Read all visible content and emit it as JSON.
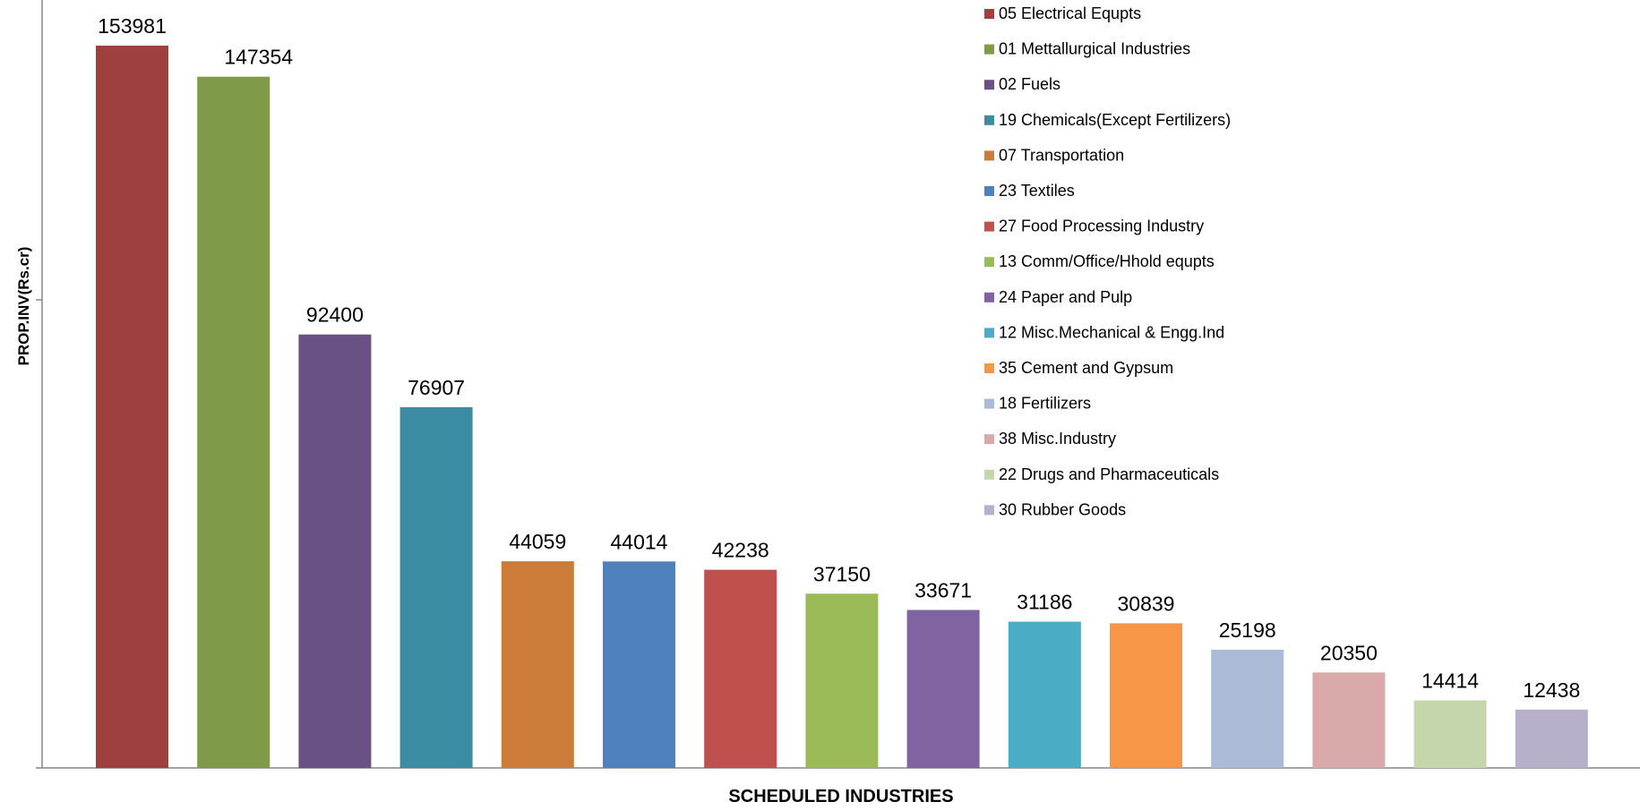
{
  "chart_data": {
    "type": "bar",
    "title": "",
    "xlabel": "SCHEDULED INDUSTRIES",
    "ylabel": "PROP.INV(Rs.cr)",
    "ylim": [
      0,
      160000
    ],
    "grid": false,
    "legend_position": "top-right",
    "categories": [
      "05 Electrical Equpts",
      "01 Mettallurgical Industries",
      "02 Fuels",
      "19 Chemicals(Except Fertilizers)",
      "07 Transportation",
      "23 Textiles",
      "27 Food Processing Industry",
      "13 Comm/Office/Hhold equpts",
      "24 Paper and Pulp",
      "12 Misc.Mechanical & Engg.Ind",
      "35 Cement and Gypsum",
      "18 Fertilizers",
      "38 Misc.Industry",
      "22 Drugs and Pharmaceuticals",
      "30 Rubber Goods"
    ],
    "values": [
      153981,
      147354,
      92400,
      76907,
      44059,
      44014,
      42238,
      37150,
      33671,
      31186,
      30839,
      25198,
      20350,
      14414,
      12438
    ],
    "colors": [
      "#9E413E",
      "#7F9A48",
      "#695185",
      "#3C8DA3",
      "#CC7B38",
      "#4F81BD",
      "#C0504D",
      "#9BBB59",
      "#8064A2",
      "#4BACC6",
      "#F79646",
      "#AABAD7",
      "#D9AAA9",
      "#C6D6AC",
      "#B8AFCB"
    ]
  }
}
